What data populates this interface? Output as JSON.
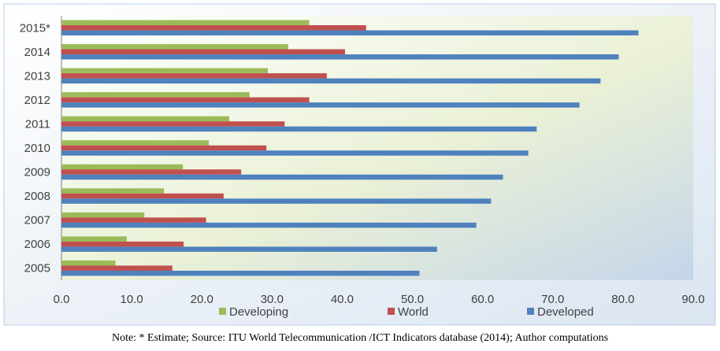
{
  "chart_data": {
    "type": "bar",
    "orientation": "horizontal",
    "categories": [
      "2005",
      "2006",
      "2007",
      "2008",
      "2009",
      "2010",
      "2011",
      "2012",
      "2013",
      "2014",
      "2015*"
    ],
    "series": [
      {
        "name": "Developing",
        "color": "#9bbb59",
        "values": [
          7.7,
          9.3,
          11.8,
          14.6,
          17.3,
          21.0,
          23.9,
          26.8,
          29.4,
          32.3,
          35.3
        ]
      },
      {
        "name": "World",
        "color": "#c0504d",
        "values": [
          15.8,
          17.4,
          20.6,
          23.1,
          25.6,
          29.2,
          31.8,
          35.3,
          37.8,
          40.4,
          43.4
        ]
      },
      {
        "name": "Developed",
        "color": "#4f81bd",
        "values": [
          51.0,
          53.5,
          59.1,
          61.2,
          62.9,
          66.5,
          67.7,
          73.8,
          76.8,
          79.4,
          82.2
        ]
      }
    ],
    "xlim": [
      0,
      90
    ],
    "x_ticks": [
      "0.0",
      "10.0",
      "20.0",
      "30.0",
      "40.0",
      "50.0",
      "60.0",
      "70.0",
      "80.0",
      "90.0"
    ],
    "legend_position": "bottom",
    "grid": false,
    "title": "",
    "xlabel": "",
    "ylabel": ""
  },
  "note": "Note: * Estimate; Source: ITU World Telecommunication /ICT Indicators database (2014); Author computations"
}
